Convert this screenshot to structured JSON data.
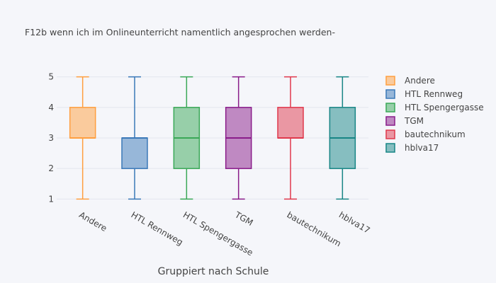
{
  "chart_data": {
    "type": "box",
    "title": "F12b wenn ich im Onlineunterricht namentlich angesprochen werden-",
    "xlabel": "Gruppiert nach Schule",
    "ylabel": "",
    "ylim": [
      0.8,
      5.2
    ],
    "yticks": [
      1,
      2,
      3,
      4,
      5
    ],
    "grid": true,
    "legend_position": "right",
    "series": [
      {
        "name": "Andere",
        "color": "#ff9f3f",
        "min": 1,
        "q1": 3,
        "median": 3,
        "q3": 4,
        "max": 5
      },
      {
        "name": "HTL Rennweg",
        "color": "#3a78b8",
        "min": 1,
        "q1": 2,
        "median": 3,
        "q3": 3,
        "max": 5
      },
      {
        "name": "HTL Spengergasse",
        "color": "#3aa857",
        "min": 1,
        "q1": 2,
        "median": 3,
        "q3": 4,
        "max": 5
      },
      {
        "name": "TGM",
        "color": "#8a1c8a",
        "min": 1,
        "q1": 2,
        "median": 3,
        "q3": 4,
        "max": 5
      },
      {
        "name": "bautechnikum",
        "color": "#e0384c",
        "min": 1,
        "q1": 3,
        "median": 3,
        "q3": 4,
        "max": 5
      },
      {
        "name": "hblva17",
        "color": "#178585",
        "min": 1,
        "q1": 2,
        "median": 3,
        "q3": 4,
        "max": 5
      }
    ]
  }
}
